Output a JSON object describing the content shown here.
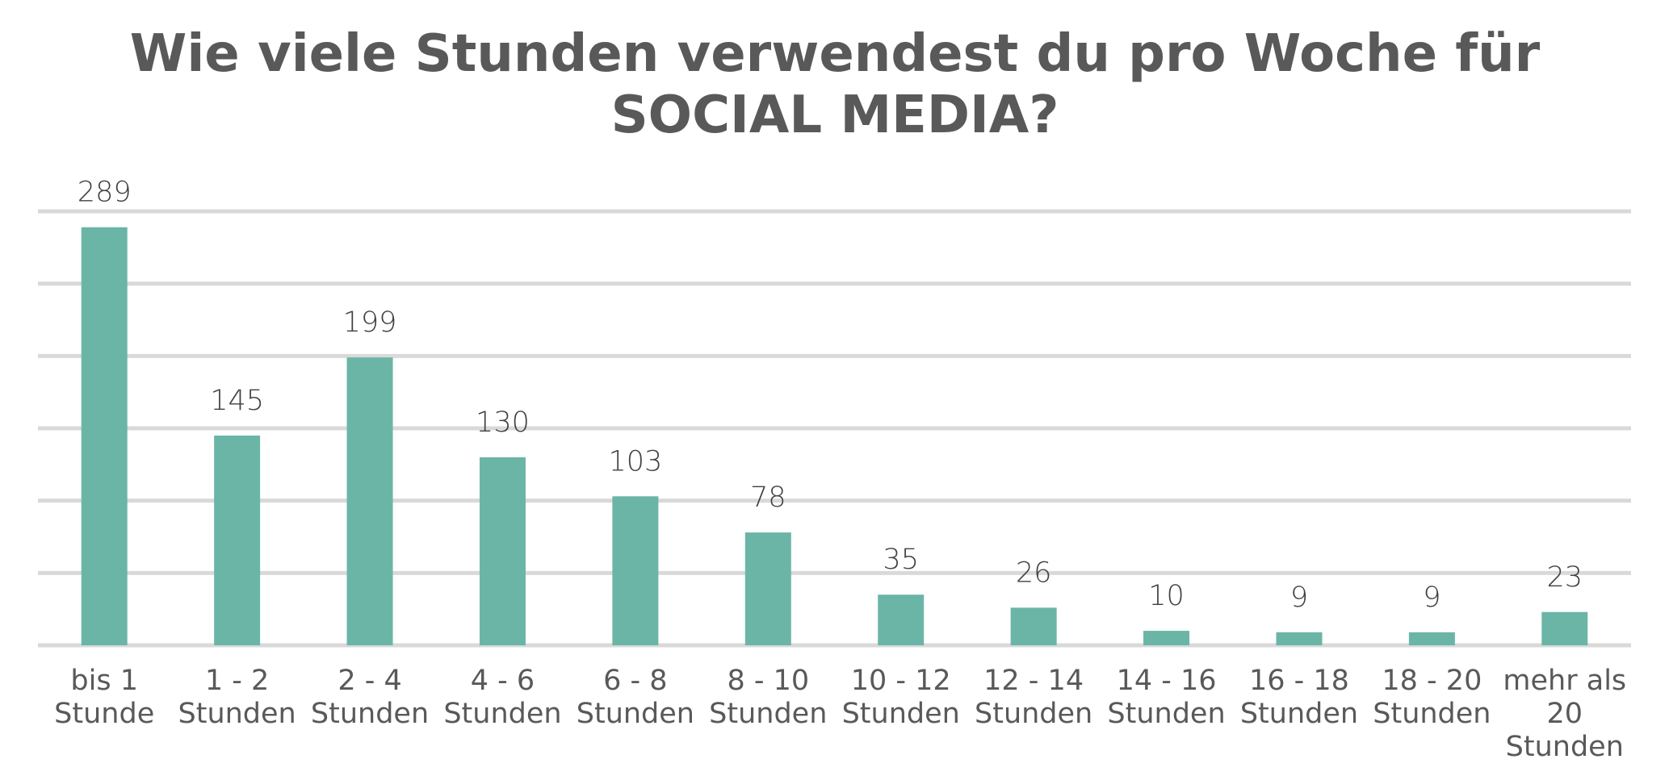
{
  "chart_data": {
    "type": "bar",
    "title": [
      "Wie viele Stunden verwendest du pro Woche für",
      "SOCIAL MEDIA?"
    ],
    "categories": [
      [
        "bis 1",
        "Stunde"
      ],
      [
        "1 - 2",
        "Stunden"
      ],
      [
        "2 - 4",
        "Stunden"
      ],
      [
        "4 - 6",
        "Stunden"
      ],
      [
        "6 - 8",
        "Stunden"
      ],
      [
        "8 - 10",
        "Stunden"
      ],
      [
        "10 - 12",
        "Stunden"
      ],
      [
        "12 - 14",
        "Stunden"
      ],
      [
        "14 - 16",
        "Stunden"
      ],
      [
        "16 - 18",
        "Stunden"
      ],
      [
        "18 - 20",
        "Stunden"
      ],
      [
        "mehr als",
        "20",
        "Stunden"
      ]
    ],
    "values": [
      289,
      145,
      199,
      130,
      103,
      78,
      35,
      26,
      10,
      9,
      9,
      23
    ],
    "ylim": [
      0,
      300
    ],
    "grid": true,
    "bar_color": "#6bb5a7"
  }
}
